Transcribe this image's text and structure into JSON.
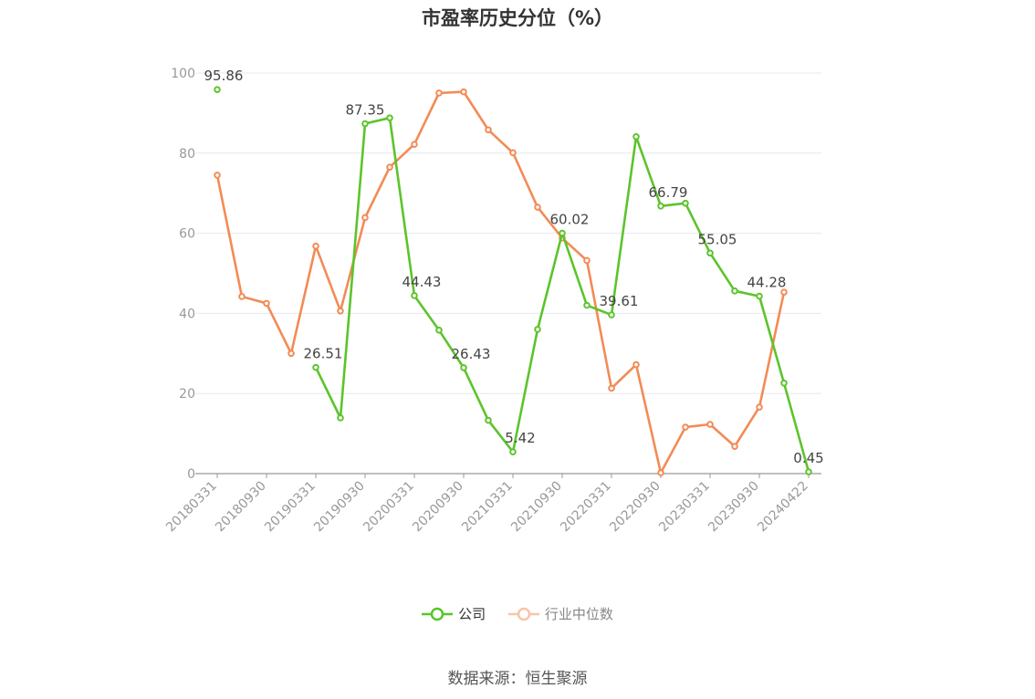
{
  "chart_data": {
    "type": "line",
    "title": "市盈率历史分位（%）",
    "ylim": [
      0,
      100
    ],
    "y_ticks": [
      "0",
      "20",
      "40",
      "60",
      "80",
      "100"
    ],
    "x_tick_labels": [
      "20180331",
      "20180930",
      "20190331",
      "20190930",
      "20200331",
      "20200930",
      "20210331",
      "20210930",
      "20220331",
      "20220930",
      "20230331",
      "20230930",
      "20240422"
    ],
    "x": [
      "20180331",
      "20180630",
      "20180930",
      "20181231",
      "20190331",
      "20190630",
      "20190930",
      "20191231",
      "20200331",
      "20200630",
      "20200930",
      "20201231",
      "20210331",
      "20210630",
      "20210930",
      "20211231",
      "20220331",
      "20220630",
      "20220930",
      "20221231",
      "20230331",
      "20230630",
      "20230930",
      "20231231",
      "20240422"
    ],
    "series": [
      {
        "name": "公司",
        "color": "#5cc42b",
        "values": [
          95.86,
          null,
          null,
          null,
          26.51,
          13.9,
          87.35,
          88.8,
          44.43,
          35.8,
          26.43,
          13.3,
          5.42,
          36.0,
          60.02,
          42.0,
          39.61,
          84.1,
          66.79,
          67.5,
          55.05,
          45.6,
          44.28,
          22.6,
          0.45
        ],
        "labels": {
          "0": "95.86",
          "4": "26.51",
          "6": "87.35",
          "8": "44.43",
          "10": "26.43",
          "12": "5.42",
          "14": "60.02",
          "16": "39.61",
          "18": "66.79",
          "20": "55.05",
          "22": "44.28",
          "24": "0.45"
        }
      },
      {
        "name": "行业中位数",
        "color": "#f28b56",
        "values": [
          74.5,
          44.2,
          42.5,
          30.0,
          56.8,
          40.6,
          63.9,
          76.5,
          82.2,
          95.0,
          95.3,
          85.8,
          80.1,
          66.5,
          58.8,
          53.2,
          21.3,
          27.2,
          0.2,
          11.6,
          12.3,
          6.8,
          16.6,
          45.3,
          null
        ]
      }
    ],
    "grid": true,
    "legend_position": "bottom"
  },
  "source": "数据来源：恒生聚源"
}
